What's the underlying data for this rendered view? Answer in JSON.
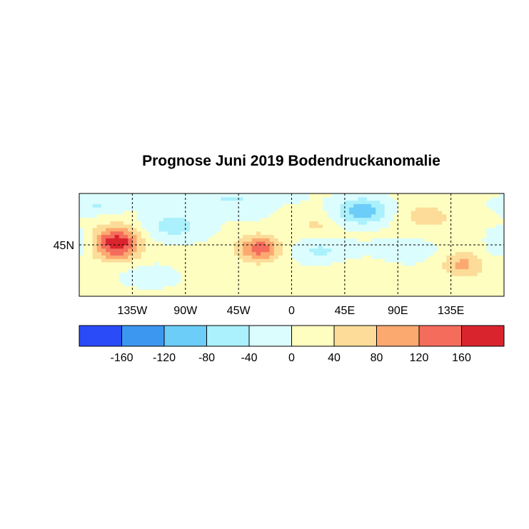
{
  "title": "Prognose Juni 2019 Bodendruckanomalie",
  "map": {
    "lon_range": [
      -180,
      180
    ],
    "lat_range": [
      0,
      90
    ],
    "lon_ticks": [
      {
        "value": -135,
        "label": "135W"
      },
      {
        "value": -90,
        "label": "90W"
      },
      {
        "value": -45,
        "label": "45W"
      },
      {
        "value": 0,
        "label": "0"
      },
      {
        "value": 45,
        "label": "45E"
      },
      {
        "value": 90,
        "label": "90E"
      },
      {
        "value": 135,
        "label": "135E"
      }
    ],
    "lat_ticks": [
      {
        "value": 45,
        "label": "45N"
      }
    ],
    "gridlines": "dashed"
  },
  "colorbar": {
    "levels": [
      -160,
      -120,
      -80,
      -40,
      0,
      40,
      80,
      120,
      160
    ],
    "labels": [
      "-160",
      "-120",
      "-80",
      "-40",
      "0",
      "40",
      "80",
      "120",
      "160"
    ],
    "colors": [
      "#2a4bf8",
      "#3c97f0",
      "#6ccdf8",
      "#aaf0fd",
      "#dcfdfd",
      "#fefec0",
      "#fcdc98",
      "#fca970",
      "#f46c5c",
      "#d9242e"
    ]
  }
}
